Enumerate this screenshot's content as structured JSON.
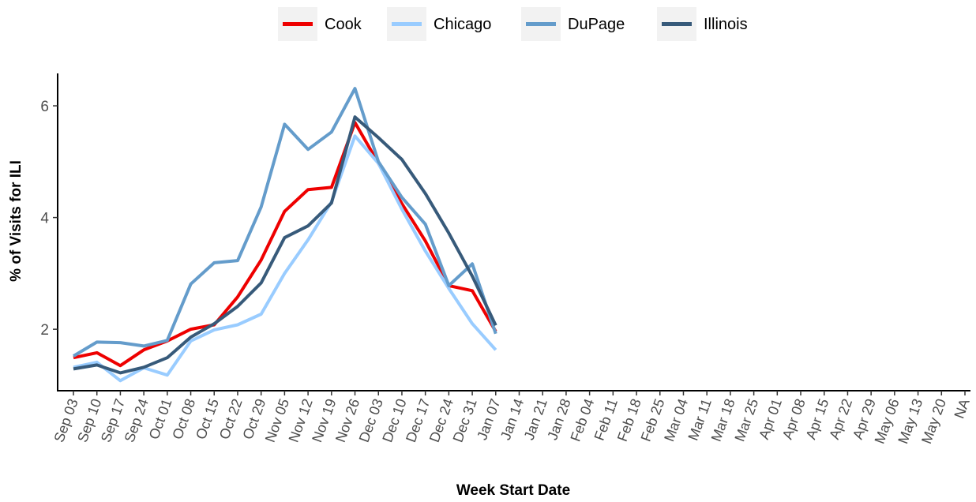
{
  "chart_data": {
    "type": "line",
    "x_label": "Week Start Date",
    "y_label": "% of Visits for ILI",
    "categories": [
      "Sep 03",
      "Sep 10",
      "Sep 17",
      "Sep 24",
      "Oct 01",
      "Oct 08",
      "Oct 15",
      "Oct 22",
      "Oct 29",
      "Nov 05",
      "Nov 12",
      "Nov 19",
      "Nov 26",
      "Dec 03",
      "Dec 10",
      "Dec 17",
      "Dec 24",
      "Dec 31",
      "Jan 07",
      "Jan 14",
      "Jan 21",
      "Jan 28",
      "Feb 04",
      "Feb 11",
      "Feb 18",
      "Feb 25",
      "Mar 04",
      "Mar 11",
      "Mar 18",
      "Mar 25",
      "Apr 01",
      "Apr 08",
      "Apr 15",
      "Apr 22",
      "Apr 29",
      "May 06",
      "May 13",
      "May 20",
      "NA"
    ],
    "series": [
      {
        "name": "Cook",
        "color": "#ee0000",
        "values": [
          1.49,
          1.58,
          1.35,
          1.63,
          1.79,
          2.0,
          2.08,
          2.58,
          3.24,
          4.11,
          4.5,
          4.54,
          5.7,
          4.97,
          4.25,
          3.58,
          2.78,
          2.69,
          1.96,
          null,
          null,
          null,
          null,
          null,
          null,
          null,
          null,
          null,
          null,
          null,
          null,
          null,
          null,
          null,
          null,
          null,
          null,
          null,
          null
        ]
      },
      {
        "name": "Chicago",
        "color": "#99ccff",
        "values": [
          1.32,
          1.41,
          1.08,
          1.31,
          1.18,
          1.79,
          1.99,
          2.08,
          2.27,
          3.0,
          3.6,
          4.28,
          5.46,
          4.97,
          4.15,
          3.4,
          2.73,
          2.1,
          1.63,
          null,
          null,
          null,
          null,
          null,
          null,
          null,
          null,
          null,
          null,
          null,
          null,
          null,
          null,
          null,
          null,
          null,
          null,
          null,
          null
        ]
      },
      {
        "name": "DuPage",
        "color": "#649ccb",
        "values": [
          1.52,
          1.77,
          1.76,
          1.7,
          1.8,
          2.81,
          3.19,
          3.23,
          4.19,
          5.67,
          5.22,
          5.53,
          6.31,
          5.0,
          4.36,
          3.88,
          2.78,
          3.17,
          1.92,
          null,
          null,
          null,
          null,
          null,
          null,
          null,
          null,
          null,
          null,
          null,
          null,
          null,
          null,
          null,
          null,
          null,
          null,
          null,
          null
        ]
      },
      {
        "name": "Illinois",
        "color": "#375a7a",
        "values": [
          1.29,
          1.36,
          1.22,
          1.32,
          1.49,
          1.86,
          2.1,
          2.41,
          2.83,
          3.64,
          3.85,
          4.26,
          5.8,
          5.43,
          5.04,
          4.43,
          3.72,
          2.95,
          2.07,
          null,
          null,
          null,
          null,
          null,
          null,
          null,
          null,
          null,
          null,
          null,
          null,
          null,
          null,
          null,
          null,
          null,
          null,
          null,
          null
        ]
      }
    ],
    "ylim": [
      0.9,
      6.58
    ],
    "yticks": [
      2,
      4,
      6
    ],
    "grid": false,
    "legend": "top"
  }
}
